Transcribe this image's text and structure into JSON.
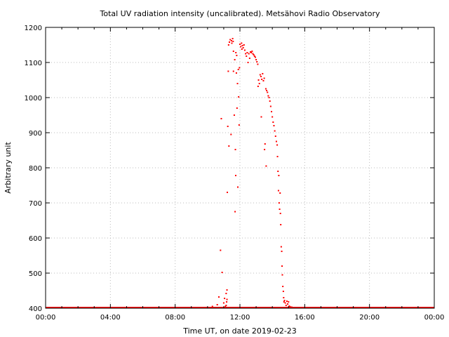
{
  "chart_data": {
    "type": "scatter",
    "title": "Total UV radiation intensity (uncalibrated). Metsähovi Radio Observatory",
    "xlabel": "Time UT, on date 2019-02-23",
    "ylabel": "Arbitrary unit",
    "xlim": [
      "00:00",
      "24:00"
    ],
    "ylim": [
      400,
      1200
    ],
    "x_ticks": [
      "00:00",
      "04:00",
      "08:00",
      "12:00",
      "16:00",
      "20:00",
      "00:00"
    ],
    "y_ticks": [
      "400",
      "500",
      "600",
      "700",
      "800",
      "900",
      "1000",
      "1100",
      "1200"
    ],
    "grid": true,
    "legend": "none",
    "series": [
      {
        "color": "#ff0000",
        "x_unit": "hours UT",
        "baseline": 402,
        "points": [
          [
            10.3,
            405
          ],
          [
            10.6,
            410
          ],
          [
            10.7,
            432
          ],
          [
            10.8,
            565
          ],
          [
            10.85,
            940
          ],
          [
            10.9,
            502
          ],
          [
            11.0,
            415
          ],
          [
            11.05,
            428
          ],
          [
            11.1,
            405
          ],
          [
            11.15,
            408
          ],
          [
            11.15,
            442
          ],
          [
            11.18,
            418
          ],
          [
            11.2,
            452
          ],
          [
            11.2,
            425
          ],
          [
            11.22,
            730
          ],
          [
            11.25,
            918
          ],
          [
            11.28,
            1075
          ],
          [
            11.3,
            1150
          ],
          [
            11.32,
            862
          ],
          [
            11.35,
            1158
          ],
          [
            11.4,
            1165
          ],
          [
            11.45,
            895
          ],
          [
            11.48,
            1162
          ],
          [
            11.5,
            1155
          ],
          [
            11.55,
            1168
          ],
          [
            11.58,
            1160
          ],
          [
            11.6,
            1132
          ],
          [
            11.6,
            1075
          ],
          [
            11.65,
            950
          ],
          [
            11.68,
            1108
          ],
          [
            11.7,
            675
          ],
          [
            11.72,
            852
          ],
          [
            11.74,
            778
          ],
          [
            11.75,
            1128
          ],
          [
            11.78,
            1070
          ],
          [
            11.8,
            1120
          ],
          [
            11.82,
            970
          ],
          [
            11.85,
            1040
          ],
          [
            11.87,
            745
          ],
          [
            11.9,
            1080
          ],
          [
            11.92,
            1002
          ],
          [
            11.95,
            922
          ],
          [
            11.97,
            1085
          ],
          [
            12.0,
            1152
          ],
          [
            12.05,
            1145
          ],
          [
            12.1,
            1155
          ],
          [
            12.12,
            1138
          ],
          [
            12.15,
            1148
          ],
          [
            12.2,
            1142
          ],
          [
            12.25,
            1150
          ],
          [
            12.3,
            1135
          ],
          [
            12.35,
            1125
          ],
          [
            12.4,
            1118
          ],
          [
            12.45,
            1128
          ],
          [
            12.5,
            1100
          ],
          [
            12.55,
            1125
          ],
          [
            12.6,
            1112
          ],
          [
            12.65,
            1130
          ],
          [
            12.7,
            1128
          ],
          [
            12.75,
            1132
          ],
          [
            12.8,
            1125
          ],
          [
            12.85,
            1122
          ],
          [
            12.9,
            1118
          ],
          [
            12.95,
            1115
          ],
          [
            13.0,
            1108
          ],
          [
            13.05,
            1102
          ],
          [
            13.1,
            1095
          ],
          [
            13.12,
            1032
          ],
          [
            13.15,
            1050
          ],
          [
            13.2,
            1040
          ],
          [
            13.25,
            1065
          ],
          [
            13.3,
            1060
          ],
          [
            13.32,
            945
          ],
          [
            13.35,
            1052
          ],
          [
            13.4,
            1068
          ],
          [
            13.45,
            1048
          ],
          [
            13.5,
            1055
          ],
          [
            13.52,
            852
          ],
          [
            13.55,
            868
          ],
          [
            13.6,
            1025
          ],
          [
            13.62,
            805
          ],
          [
            13.65,
            1020
          ],
          [
            13.7,
            1015
          ],
          [
            13.75,
            1005
          ],
          [
            13.8,
            1000
          ],
          [
            13.85,
            990
          ],
          [
            13.9,
            975
          ],
          [
            13.95,
            960
          ],
          [
            14.0,
            945
          ],
          [
            14.05,
            930
          ],
          [
            14.1,
            920
          ],
          [
            14.15,
            905
          ],
          [
            14.2,
            890
          ],
          [
            14.25,
            875
          ],
          [
            14.3,
            865
          ],
          [
            14.32,
            832
          ],
          [
            14.35,
            790
          ],
          [
            14.38,
            735
          ],
          [
            14.4,
            778
          ],
          [
            14.42,
            700
          ],
          [
            14.45,
            682
          ],
          [
            14.48,
            728
          ],
          [
            14.5,
            670
          ],
          [
            14.52,
            638
          ],
          [
            14.55,
            575
          ],
          [
            14.58,
            562
          ],
          [
            14.6,
            520
          ],
          [
            14.62,
            495
          ],
          [
            14.65,
            462
          ],
          [
            14.68,
            448
          ],
          [
            14.7,
            430
          ],
          [
            14.72,
            418
          ],
          [
            14.75,
            422
          ],
          [
            14.8,
            415
          ],
          [
            14.85,
            408
          ],
          [
            14.9,
            420
          ],
          [
            14.95,
            412
          ],
          [
            15.0,
            418
          ],
          [
            15.05,
            406
          ],
          [
            15.1,
            404
          ],
          [
            15.2,
            403
          ]
        ]
      }
    ]
  }
}
